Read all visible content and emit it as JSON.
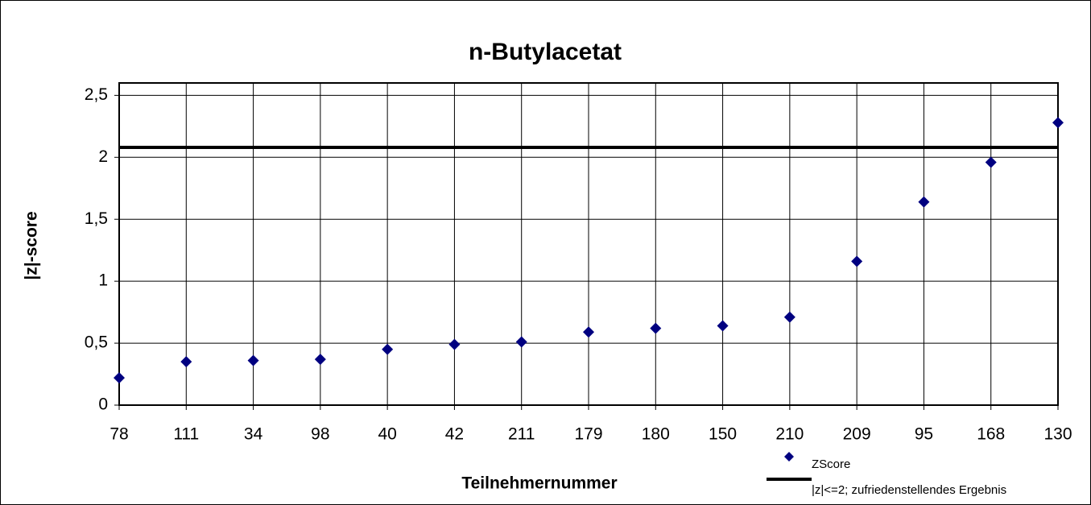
{
  "chart_data": {
    "type": "scatter",
    "title": "n-Butylacetat",
    "x_label": "Teilnehmernummer",
    "y_label": "|z|-score",
    "categories": [
      "78",
      "111",
      "34",
      "98",
      "40",
      "42",
      "211",
      "179",
      "180",
      "150",
      "210",
      "209",
      "95",
      "168",
      "130"
    ],
    "series": [
      {
        "name": "ZScore",
        "color": "#000080",
        "values": [
          0.22,
          0.35,
          0.36,
          0.37,
          0.45,
          0.49,
          0.51,
          0.59,
          0.62,
          0.64,
          0.71,
          1.16,
          1.64,
          1.96,
          2.28
        ]
      }
    ],
    "reference_line": {
      "name": "|z|<=2; zufriedenstellendes Ergebnis",
      "value": 2.08,
      "color": "#000000"
    },
    "ylim": [
      0,
      2.6
    ],
    "yticks": [
      0,
      {
        "value": 0.5,
        "label": "0,5"
      },
      1,
      {
        "value": 1.5,
        "label": "1,5"
      },
      2,
      {
        "value": 2.5,
        "label": "2,5"
      }
    ],
    "grid": true
  }
}
